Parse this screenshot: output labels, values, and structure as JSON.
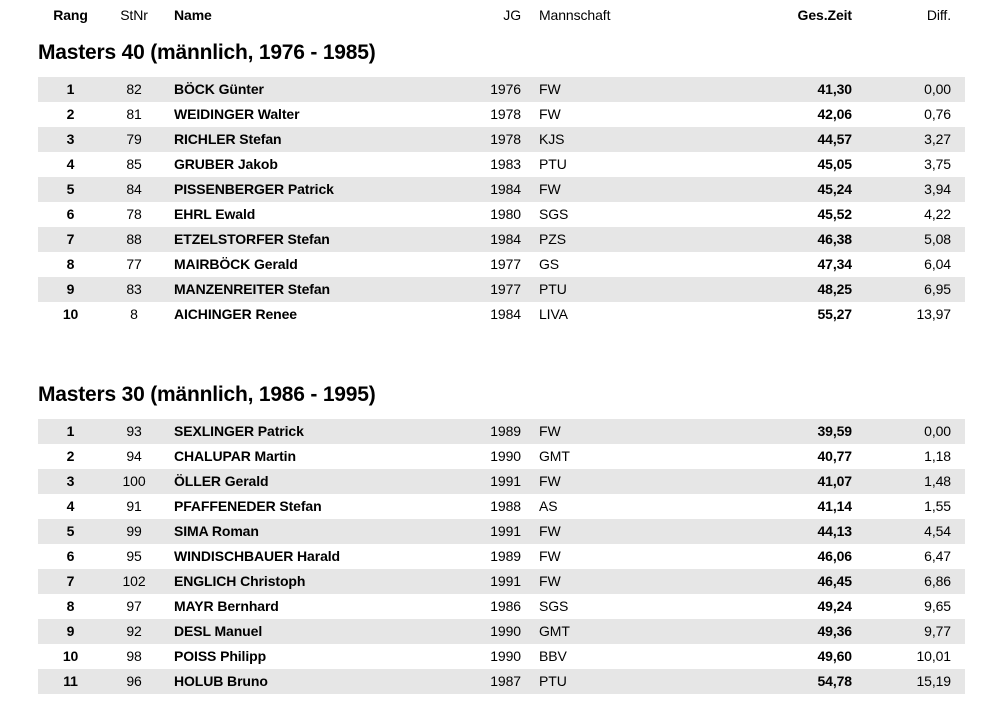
{
  "document": {
    "colors": {
      "background": "#ffffff",
      "text": "#000000",
      "row_stripe": "#e6e6e6"
    },
    "header": {
      "columns": [
        {
          "key": "rang",
          "label": "Rang"
        },
        {
          "key": "stnr",
          "label": "StNr"
        },
        {
          "key": "name",
          "label": "Name"
        },
        {
          "key": "jg",
          "label": "JG"
        },
        {
          "key": "mannschaft",
          "label": "Mannschaft"
        },
        {
          "key": "ges_zeit",
          "label": "Ges.Zeit"
        },
        {
          "key": "diff",
          "label": "Diff."
        }
      ]
    },
    "sections": [
      {
        "title": "Masters 40 (männlich, 1976 - 1985)",
        "rows": [
          {
            "rang": "1",
            "stnr": "82",
            "name": "BÖCK Günter",
            "jg": "1976",
            "mannschaft": "FW",
            "ges_zeit": "41,30",
            "diff": "0,00"
          },
          {
            "rang": "2",
            "stnr": "81",
            "name": "WEIDINGER Walter",
            "jg": "1978",
            "mannschaft": "FW",
            "ges_zeit": "42,06",
            "diff": "0,76"
          },
          {
            "rang": "3",
            "stnr": "79",
            "name": "RICHLER Stefan",
            "jg": "1978",
            "mannschaft": "KJS",
            "ges_zeit": "44,57",
            "diff": "3,27"
          },
          {
            "rang": "4",
            "stnr": "85",
            "name": "GRUBER Jakob",
            "jg": "1983",
            "mannschaft": "PTU",
            "ges_zeit": "45,05",
            "diff": "3,75"
          },
          {
            "rang": "5",
            "stnr": "84",
            "name": "PISSENBERGER Patrick",
            "jg": "1984",
            "mannschaft": "FW",
            "ges_zeit": "45,24",
            "diff": "3,94"
          },
          {
            "rang": "6",
            "stnr": "78",
            "name": "EHRL Ewald",
            "jg": "1980",
            "mannschaft": "SGS",
            "ges_zeit": "45,52",
            "diff": "4,22"
          },
          {
            "rang": "7",
            "stnr": "88",
            "name": "ETZELSTORFER Stefan",
            "jg": "1984",
            "mannschaft": "PZS",
            "ges_zeit": "46,38",
            "diff": "5,08"
          },
          {
            "rang": "8",
            "stnr": "77",
            "name": "MAIRBÖCK Gerald",
            "jg": "1977",
            "mannschaft": "GS",
            "ges_zeit": "47,34",
            "diff": "6,04"
          },
          {
            "rang": "9",
            "stnr": "83",
            "name": "MANZENREITER Stefan",
            "jg": "1977",
            "mannschaft": "PTU",
            "ges_zeit": "48,25",
            "diff": "6,95"
          },
          {
            "rang": "10",
            "stnr": "8",
            "name": "AICHINGER Renee",
            "jg": "1984",
            "mannschaft": "LIVA",
            "ges_zeit": "55,27",
            "diff": "13,97"
          }
        ]
      },
      {
        "title": "Masters 30 (männlich, 1986 - 1995)",
        "rows": [
          {
            "rang": "1",
            "stnr": "93",
            "name": "SEXLINGER Patrick",
            "jg": "1989",
            "mannschaft": "FW",
            "ges_zeit": "39,59",
            "diff": "0,00"
          },
          {
            "rang": "2",
            "stnr": "94",
            "name": "CHALUPAR Martin",
            "jg": "1990",
            "mannschaft": "GMT",
            "ges_zeit": "40,77",
            "diff": "1,18"
          },
          {
            "rang": "3",
            "stnr": "100",
            "name": "ÖLLER Gerald",
            "jg": "1991",
            "mannschaft": "FW",
            "ges_zeit": "41,07",
            "diff": "1,48"
          },
          {
            "rang": "4",
            "stnr": "91",
            "name": "PFAFFENEDER Stefan",
            "jg": "1988",
            "mannschaft": "AS",
            "ges_zeit": "41,14",
            "diff": "1,55"
          },
          {
            "rang": "5",
            "stnr": "99",
            "name": "SIMA Roman",
            "jg": "1991",
            "mannschaft": "FW",
            "ges_zeit": "44,13",
            "diff": "4,54"
          },
          {
            "rang": "6",
            "stnr": "95",
            "name": "WINDISCHBAUER Harald",
            "jg": "1989",
            "mannschaft": "FW",
            "ges_zeit": "46,06",
            "diff": "6,47"
          },
          {
            "rang": "7",
            "stnr": "102",
            "name": "ENGLICH Christoph",
            "jg": "1991",
            "mannschaft": "FW",
            "ges_zeit": "46,45",
            "diff": "6,86"
          },
          {
            "rang": "8",
            "stnr": "97",
            "name": "MAYR Bernhard",
            "jg": "1986",
            "mannschaft": "SGS",
            "ges_zeit": "49,24",
            "diff": "9,65"
          },
          {
            "rang": "9",
            "stnr": "92",
            "name": "DESL Manuel",
            "jg": "1990",
            "mannschaft": "GMT",
            "ges_zeit": "49,36",
            "diff": "9,77"
          },
          {
            "rang": "10",
            "stnr": "98",
            "name": "POISS Philipp",
            "jg": "1990",
            "mannschaft": "BBV",
            "ges_zeit": "49,60",
            "diff": "10,01"
          },
          {
            "rang": "11",
            "stnr": "96",
            "name": "HOLUB Bruno",
            "jg": "1987",
            "mannschaft": "PTU",
            "ges_zeit": "54,78",
            "diff": "15,19"
          }
        ]
      }
    ]
  }
}
